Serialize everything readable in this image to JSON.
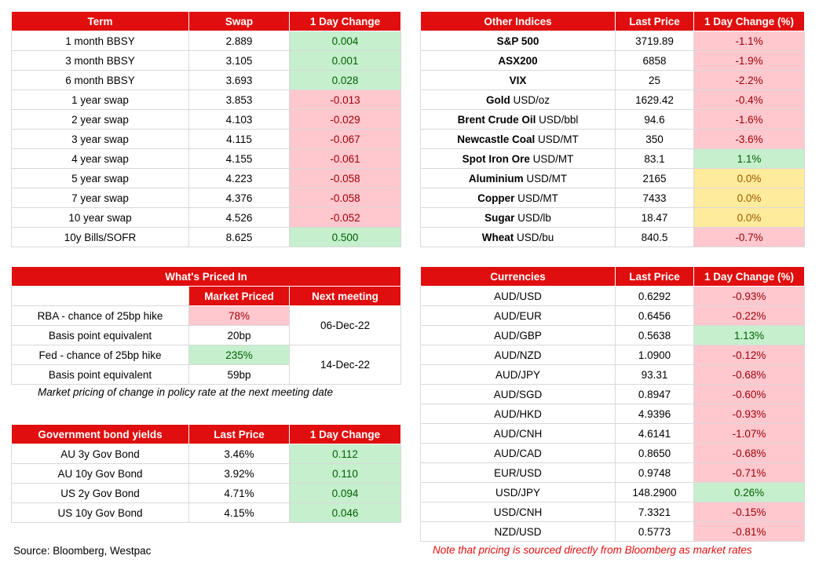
{
  "term_table": {
    "headers": [
      "Term",
      "Swap",
      "1 Day Change"
    ],
    "rows": [
      {
        "term": "1 month BBSY",
        "swap": "2.889",
        "change": "0.004",
        "dir": "up"
      },
      {
        "term": "3 month BBSY",
        "swap": "3.105",
        "change": "0.001",
        "dir": "up"
      },
      {
        "term": "6 month BBSY",
        "swap": "3.693",
        "change": "0.028",
        "dir": "up"
      },
      {
        "term": "1 year swap",
        "swap": "3.853",
        "change": "-0.013",
        "dir": "down"
      },
      {
        "term": "2 year swap",
        "swap": "4.103",
        "change": "-0.029",
        "dir": "down"
      },
      {
        "term": "3 year swap",
        "swap": "4.115",
        "change": "-0.067",
        "dir": "down"
      },
      {
        "term": "4 year swap",
        "swap": "4.155",
        "change": "-0.061",
        "dir": "down"
      },
      {
        "term": "5 year swap",
        "swap": "4.223",
        "change": "-0.058",
        "dir": "down"
      },
      {
        "term": "7 year swap",
        "swap": "4.376",
        "change": "-0.058",
        "dir": "down"
      },
      {
        "term": "10 year swap",
        "swap": "4.526",
        "change": "-0.052",
        "dir": "down"
      },
      {
        "term": "10y Bills/SOFR",
        "swap": "8.625",
        "change": "0.500",
        "dir": "up"
      }
    ]
  },
  "indices_table": {
    "headers": [
      "Other Indices",
      "Last Price",
      "1 Day Change (%)"
    ],
    "rows": [
      {
        "name": "S&P 500",
        "unit": "",
        "price": "3719.89",
        "change": "-1.1%",
        "dir": "down"
      },
      {
        "name": "ASX200",
        "unit": "",
        "price": "6858",
        "change": "-1.9%",
        "dir": "down"
      },
      {
        "name": "VIX",
        "unit": "",
        "price": "25",
        "change": "-2.2%",
        "dir": "down"
      },
      {
        "name": "Gold",
        "unit": " USD/oz",
        "price": "1629.42",
        "change": "-0.4%",
        "dir": "down"
      },
      {
        "name": "Brent Crude Oil",
        "unit": " USD/bbl",
        "price": "94.6",
        "change": "-1.6%",
        "dir": "down"
      },
      {
        "name": "Newcastle Coal",
        "unit": " USD/MT",
        "price": "350",
        "change": "-3.6%",
        "dir": "down"
      },
      {
        "name": "Spot Iron Ore",
        "unit": " USD/MT",
        "price": "83.1",
        "change": "1.1%",
        "dir": "up"
      },
      {
        "name": "Aluminium",
        "unit": " USD/MT",
        "price": "2165",
        "change": "0.0%",
        "dir": "flat"
      },
      {
        "name": "Copper",
        "unit": " USD/MT",
        "price": "7433",
        "change": "0.0%",
        "dir": "flat"
      },
      {
        "name": "Sugar",
        "unit": " USD/lb",
        "price": "18.47",
        "change": "0.0%",
        "dir": "flat"
      },
      {
        "name": "Wheat",
        "unit": " USD/bu",
        "price": "840.5",
        "change": "-0.7%",
        "dir": "down"
      }
    ]
  },
  "priced_in": {
    "title": "What's Priced In",
    "col_market": "Market Priced",
    "col_next": "Next meeting",
    "rba_label": "RBA - chance of 25bp hike",
    "rba_value": "78%",
    "rba_bp_label": "Basis point equivalent",
    "rba_bp_value": "20bp",
    "rba_date": "06-Dec-22",
    "fed_label": "Fed - chance of 25bp hike",
    "fed_value": "235%",
    "fed_bp_label": "Basis point equivalent",
    "fed_bp_value": "59bp",
    "fed_date": "14-Dec-22",
    "note": "Market pricing of change in policy rate at the next meeting date"
  },
  "bond_table": {
    "headers": [
      "Government bond yields",
      "Last Price",
      "1 Day Change"
    ],
    "rows": [
      {
        "name": "AU 3y Gov Bond",
        "price": "3.46%",
        "change": "0.112",
        "dir": "up"
      },
      {
        "name": "AU 10y Gov Bond",
        "price": "3.92%",
        "change": "0.110",
        "dir": "up"
      },
      {
        "name": "US 2y Gov Bond",
        "price": "4.71%",
        "change": "0.094",
        "dir": "up"
      },
      {
        "name": "US 10y Gov Bond",
        "price": "4.15%",
        "change": "0.046",
        "dir": "up"
      }
    ]
  },
  "currency_table": {
    "headers": [
      "Currencies",
      "Last Price",
      "1 Day Change (%)"
    ],
    "rows": [
      {
        "pair": "AUD/USD",
        "price": "0.6292",
        "change": "-0.93%",
        "dir": "down"
      },
      {
        "pair": "AUD/EUR",
        "price": "0.6456",
        "change": "-0.22%",
        "dir": "down"
      },
      {
        "pair": "AUD/GBP",
        "price": "0.5638",
        "change": "1.13%",
        "dir": "up"
      },
      {
        "pair": "AUD/NZD",
        "price": "1.0900",
        "change": "-0.12%",
        "dir": "down"
      },
      {
        "pair": "AUD/JPY",
        "price": "93.31",
        "change": "-0.68%",
        "dir": "down"
      },
      {
        "pair": "AUD/SGD",
        "price": "0.8947",
        "change": "-0.60%",
        "dir": "down"
      },
      {
        "pair": "AUD/HKD",
        "price": "4.9396",
        "change": "-0.93%",
        "dir": "down"
      },
      {
        "pair": "AUD/CNH",
        "price": "4.6141",
        "change": "-1.07%",
        "dir": "down"
      },
      {
        "pair": "AUD/CAD",
        "price": "0.8650",
        "change": "-0.68%",
        "dir": "down"
      },
      {
        "pair": "EUR/USD",
        "price": "0.9748",
        "change": "-0.71%",
        "dir": "down"
      },
      {
        "pair": "USD/JPY",
        "price": "148.2900",
        "change": "0.26%",
        "dir": "up"
      },
      {
        "pair": "USD/CNH",
        "price": "7.3321",
        "change": "-0.15%",
        "dir": "down"
      },
      {
        "pair": "NZD/USD",
        "price": "0.5773",
        "change": "-0.81%",
        "dir": "down"
      }
    ]
  },
  "footer": {
    "source": "Source: Bloomberg, Westpac",
    "disclaimer": "Note that pricing is sourced directly from Bloomberg as market rates"
  },
  "colors": {
    "header_red": "#e00e0e",
    "up_green": "#c6efce",
    "down_red": "#ffc7ce",
    "flat_yellow": "#ffeb9c",
    "disclaimer_red": "#e00e0e"
  }
}
